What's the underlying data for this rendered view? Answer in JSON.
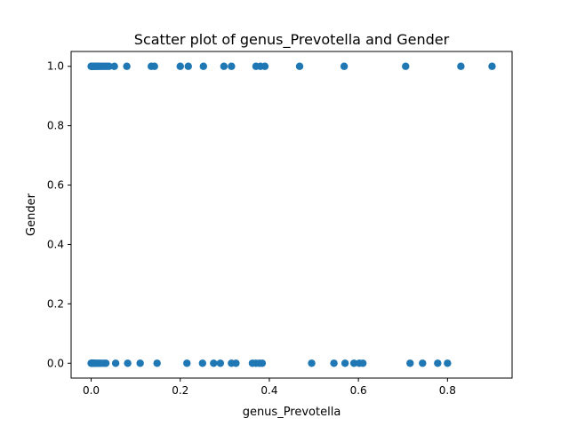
{
  "chart_data": {
    "type": "scatter",
    "title": "Scatter plot of genus_Prevotella and Gender",
    "xlabel": "genus_Prevotella",
    "ylabel": "Gender",
    "xlim": [
      -0.045,
      0.945
    ],
    "ylim": [
      -0.05,
      1.05
    ],
    "xticks": [
      0.0,
      0.2,
      0.4,
      0.6,
      0.8
    ],
    "xtick_labels": [
      "0.0",
      "0.2",
      "0.4",
      "0.6",
      "0.8"
    ],
    "yticks": [
      0.0,
      0.2,
      0.4,
      0.6,
      0.8,
      1.0
    ],
    "ytick_labels": [
      "0.0",
      "0.2",
      "0.4",
      "0.6",
      "0.8",
      "1.0"
    ],
    "grid": false,
    "marker_color": "#1f77b4",
    "series": [
      {
        "x": [
          0.0,
          0.001,
          0.002,
          0.003,
          0.004,
          0.005,
          0.007,
          0.009,
          0.012,
          0.015,
          0.018,
          0.022,
          0.026,
          0.03,
          0.035,
          0.04,
          0.052,
          0.08,
          0.135,
          0.142,
          0.2,
          0.218,
          0.252,
          0.298,
          0.315,
          0.37,
          0.38,
          0.39,
          0.468,
          0.568,
          0.706,
          0.83,
          0.9
        ],
        "y": [
          1,
          1,
          1,
          1,
          1,
          1,
          1,
          1,
          1,
          1,
          1,
          1,
          1,
          1,
          1,
          1,
          1,
          1,
          1,
          1,
          1,
          1,
          1,
          1,
          1,
          1,
          1,
          1,
          1,
          1,
          1,
          1,
          1
        ]
      },
      {
        "x": [
          0.0,
          0.001,
          0.002,
          0.003,
          0.005,
          0.007,
          0.01,
          0.014,
          0.018,
          0.022,
          0.028,
          0.033,
          0.055,
          0.082,
          0.11,
          0.148,
          0.215,
          0.25,
          0.275,
          0.29,
          0.315,
          0.325,
          0.362,
          0.37,
          0.378,
          0.384,
          0.495,
          0.545,
          0.57,
          0.59,
          0.602,
          0.61,
          0.716,
          0.744,
          0.778,
          0.8
        ],
        "y": [
          0,
          0,
          0,
          0,
          0,
          0,
          0,
          0,
          0,
          0,
          0,
          0,
          0,
          0,
          0,
          0,
          0,
          0,
          0,
          0,
          0,
          0,
          0,
          0,
          0,
          0,
          0,
          0,
          0,
          0,
          0,
          0,
          0,
          0,
          0,
          0
        ]
      }
    ]
  }
}
